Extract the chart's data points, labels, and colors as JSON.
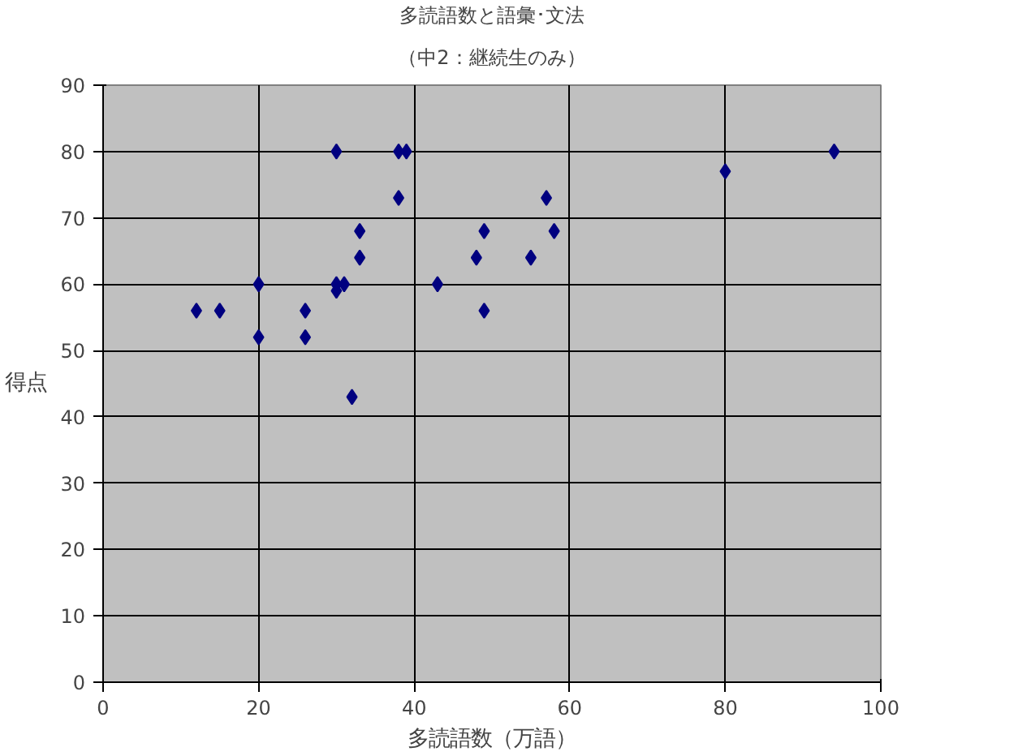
{
  "chart_data": {
    "type": "scatter",
    "title": "多読語数と語彙･文法",
    "subtitle": "（中2：継続生のみ）",
    "xlabel": "多読語数（万語）",
    "ylabel": "得点",
    "x": [
      12,
      15,
      20,
      20,
      26,
      26,
      30,
      30,
      30,
      31,
      32,
      33,
      33,
      38,
      39,
      38,
      43,
      48,
      49,
      49,
      55,
      57,
      58,
      80,
      94
    ],
    "series": [
      {
        "color": "#000080",
        "values": [
          56,
          56,
          60,
          52,
          56,
          52,
          80,
          60,
          59,
          60,
          43,
          68,
          64,
          80,
          80,
          73,
          60,
          64,
          68,
          56,
          64,
          73,
          68,
          77,
          80
        ]
      }
    ],
    "xlim": [
      0,
      100
    ],
    "ylim": [
      0,
      90
    ],
    "xticks": [
      0,
      20,
      40,
      60,
      80,
      100
    ],
    "yticks": [
      0,
      10,
      20,
      30,
      40,
      50,
      60,
      70,
      80,
      90
    ],
    "grid": true,
    "marker": "diamond"
  }
}
